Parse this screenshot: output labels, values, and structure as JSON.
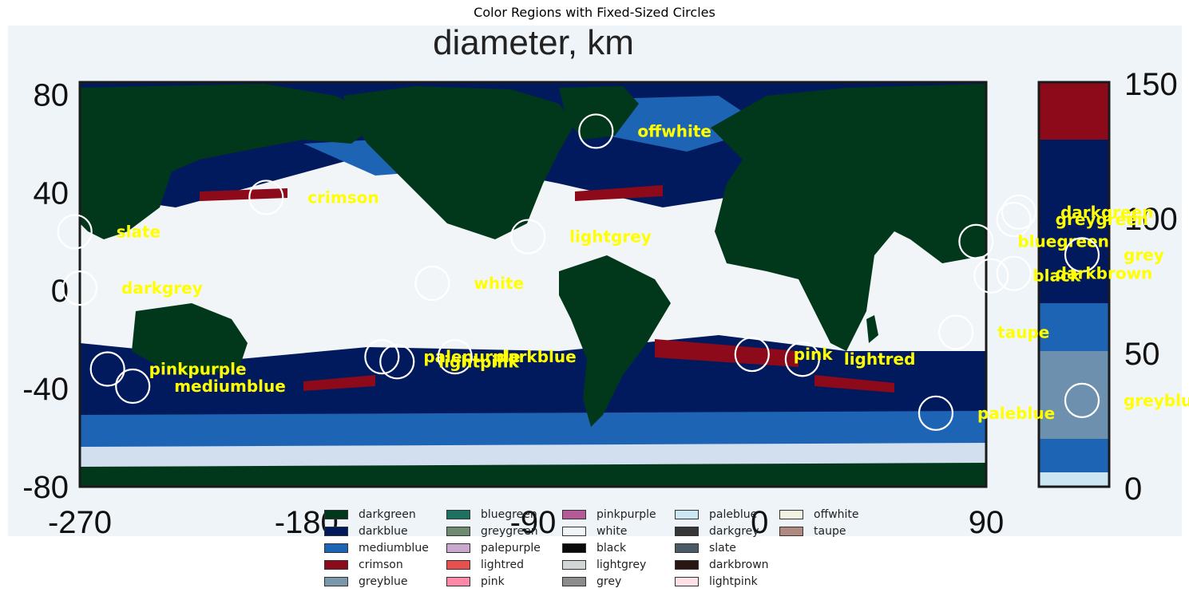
{
  "title": "Color Regions with Fixed-Sized Circles",
  "map": {
    "heading": "diameter, km",
    "x_ticks": [
      "-270",
      "-180",
      "-90",
      "0",
      "90"
    ],
    "y_ticks": [
      "80",
      "40",
      "0",
      "-40",
      "-80"
    ],
    "colorbar_ticks": [
      "150",
      "100",
      "50",
      "0"
    ],
    "x_range": [
      -270,
      90
    ],
    "y_range": [
      -80,
      85
    ],
    "colorbar_range": [
      0,
      150
    ]
  },
  "regions": [
    {
      "name": "darkgreen",
      "lon": 103,
      "lat": 32
    },
    {
      "name": "greygreen",
      "lon": 101,
      "lat": 29
    },
    {
      "name": "bluegreen",
      "lon": 86,
      "lat": 20
    },
    {
      "name": "black",
      "lon": 92,
      "lat": 6
    },
    {
      "name": "grey",
      "colorbar_value": 86
    },
    {
      "name": "darkbrown",
      "lon": 101,
      "lat": 7
    },
    {
      "name": "offwhite",
      "lon": -65,
      "lat": 65
    },
    {
      "name": "crimson",
      "lon": -196,
      "lat": 38
    },
    {
      "name": "slate",
      "lon": -272,
      "lat": 24
    },
    {
      "name": "lightgrey",
      "lon": -92,
      "lat": 22
    },
    {
      "name": "white",
      "lon": -130,
      "lat": 3
    },
    {
      "name": "darkgrey",
      "lon": -270,
      "lat": 1
    },
    {
      "name": "taupe",
      "lon": 78,
      "lat": -17
    },
    {
      "name": "lightred",
      "lon": 17,
      "lat": -28
    },
    {
      "name": "pink",
      "lon": -3,
      "lat": -26
    },
    {
      "name": "palepurple",
      "lon": -150,
      "lat": -27
    },
    {
      "name": "darkblue",
      "lon": -121,
      "lat": -27
    },
    {
      "name": "lightpink",
      "lon": -144,
      "lat": -29
    },
    {
      "name": "pinkpurple",
      "lon": -259,
      "lat": -32
    },
    {
      "name": "mediumblue",
      "lon": -249,
      "lat": -39
    },
    {
      "name": "greyblue",
      "colorbar_value": 32
    },
    {
      "name": "paleblue",
      "lon": 70,
      "lat": -50
    }
  ],
  "legend": [
    {
      "name": "darkgreen",
      "color": "#01371a"
    },
    {
      "name": "darkblue",
      "color": "#011a5e"
    },
    {
      "name": "mediumblue",
      "color": "#1e64b4"
    },
    {
      "name": "crimson",
      "color": "#8c0a1a"
    },
    {
      "name": "greyblue",
      "color": "#7a98ac"
    },
    {
      "name": "bluegreen",
      "color": "#1e7060"
    },
    {
      "name": "greygreen",
      "color": "#6e8a70"
    },
    {
      "name": "palepurple",
      "color": "#c8a8cc"
    },
    {
      "name": "lightred",
      "color": "#e85050"
    },
    {
      "name": "pink",
      "color": "#ff8aa8"
    },
    {
      "name": "pinkpurple",
      "color": "#b45a96"
    },
    {
      "name": "white",
      "color": "#f2f5f8"
    },
    {
      "name": "black",
      "color": "#0a0a0a"
    },
    {
      "name": "lightgrey",
      "color": "#d2d6d6"
    },
    {
      "name": "grey",
      "color": "#8c8c8c"
    },
    {
      "name": "paleblue",
      "color": "#cce6f4"
    },
    {
      "name": "darkgrey",
      "color": "#373737"
    },
    {
      "name": "slate",
      "color": "#4a5a64"
    },
    {
      "name": "darkbrown",
      "color": "#2a1610"
    },
    {
      "name": "lightpink",
      "color": "#fde0e6"
    },
    {
      "name": "offwhite",
      "color": "#f2f2e0"
    },
    {
      "name": "taupe",
      "color": "#b08a80"
    }
  ],
  "colors": {
    "background": "#eff4f8",
    "land": "#01371a",
    "ocean": "#f2f5f8",
    "darkblue": "#011a5e",
    "mediumblue": "#1e64b4",
    "crimson": "#8c0a1a",
    "greyblue": "#7a98ac",
    "paleblue": "#cce6f4",
    "label": "#ffff00",
    "circle": "#ffffff"
  }
}
